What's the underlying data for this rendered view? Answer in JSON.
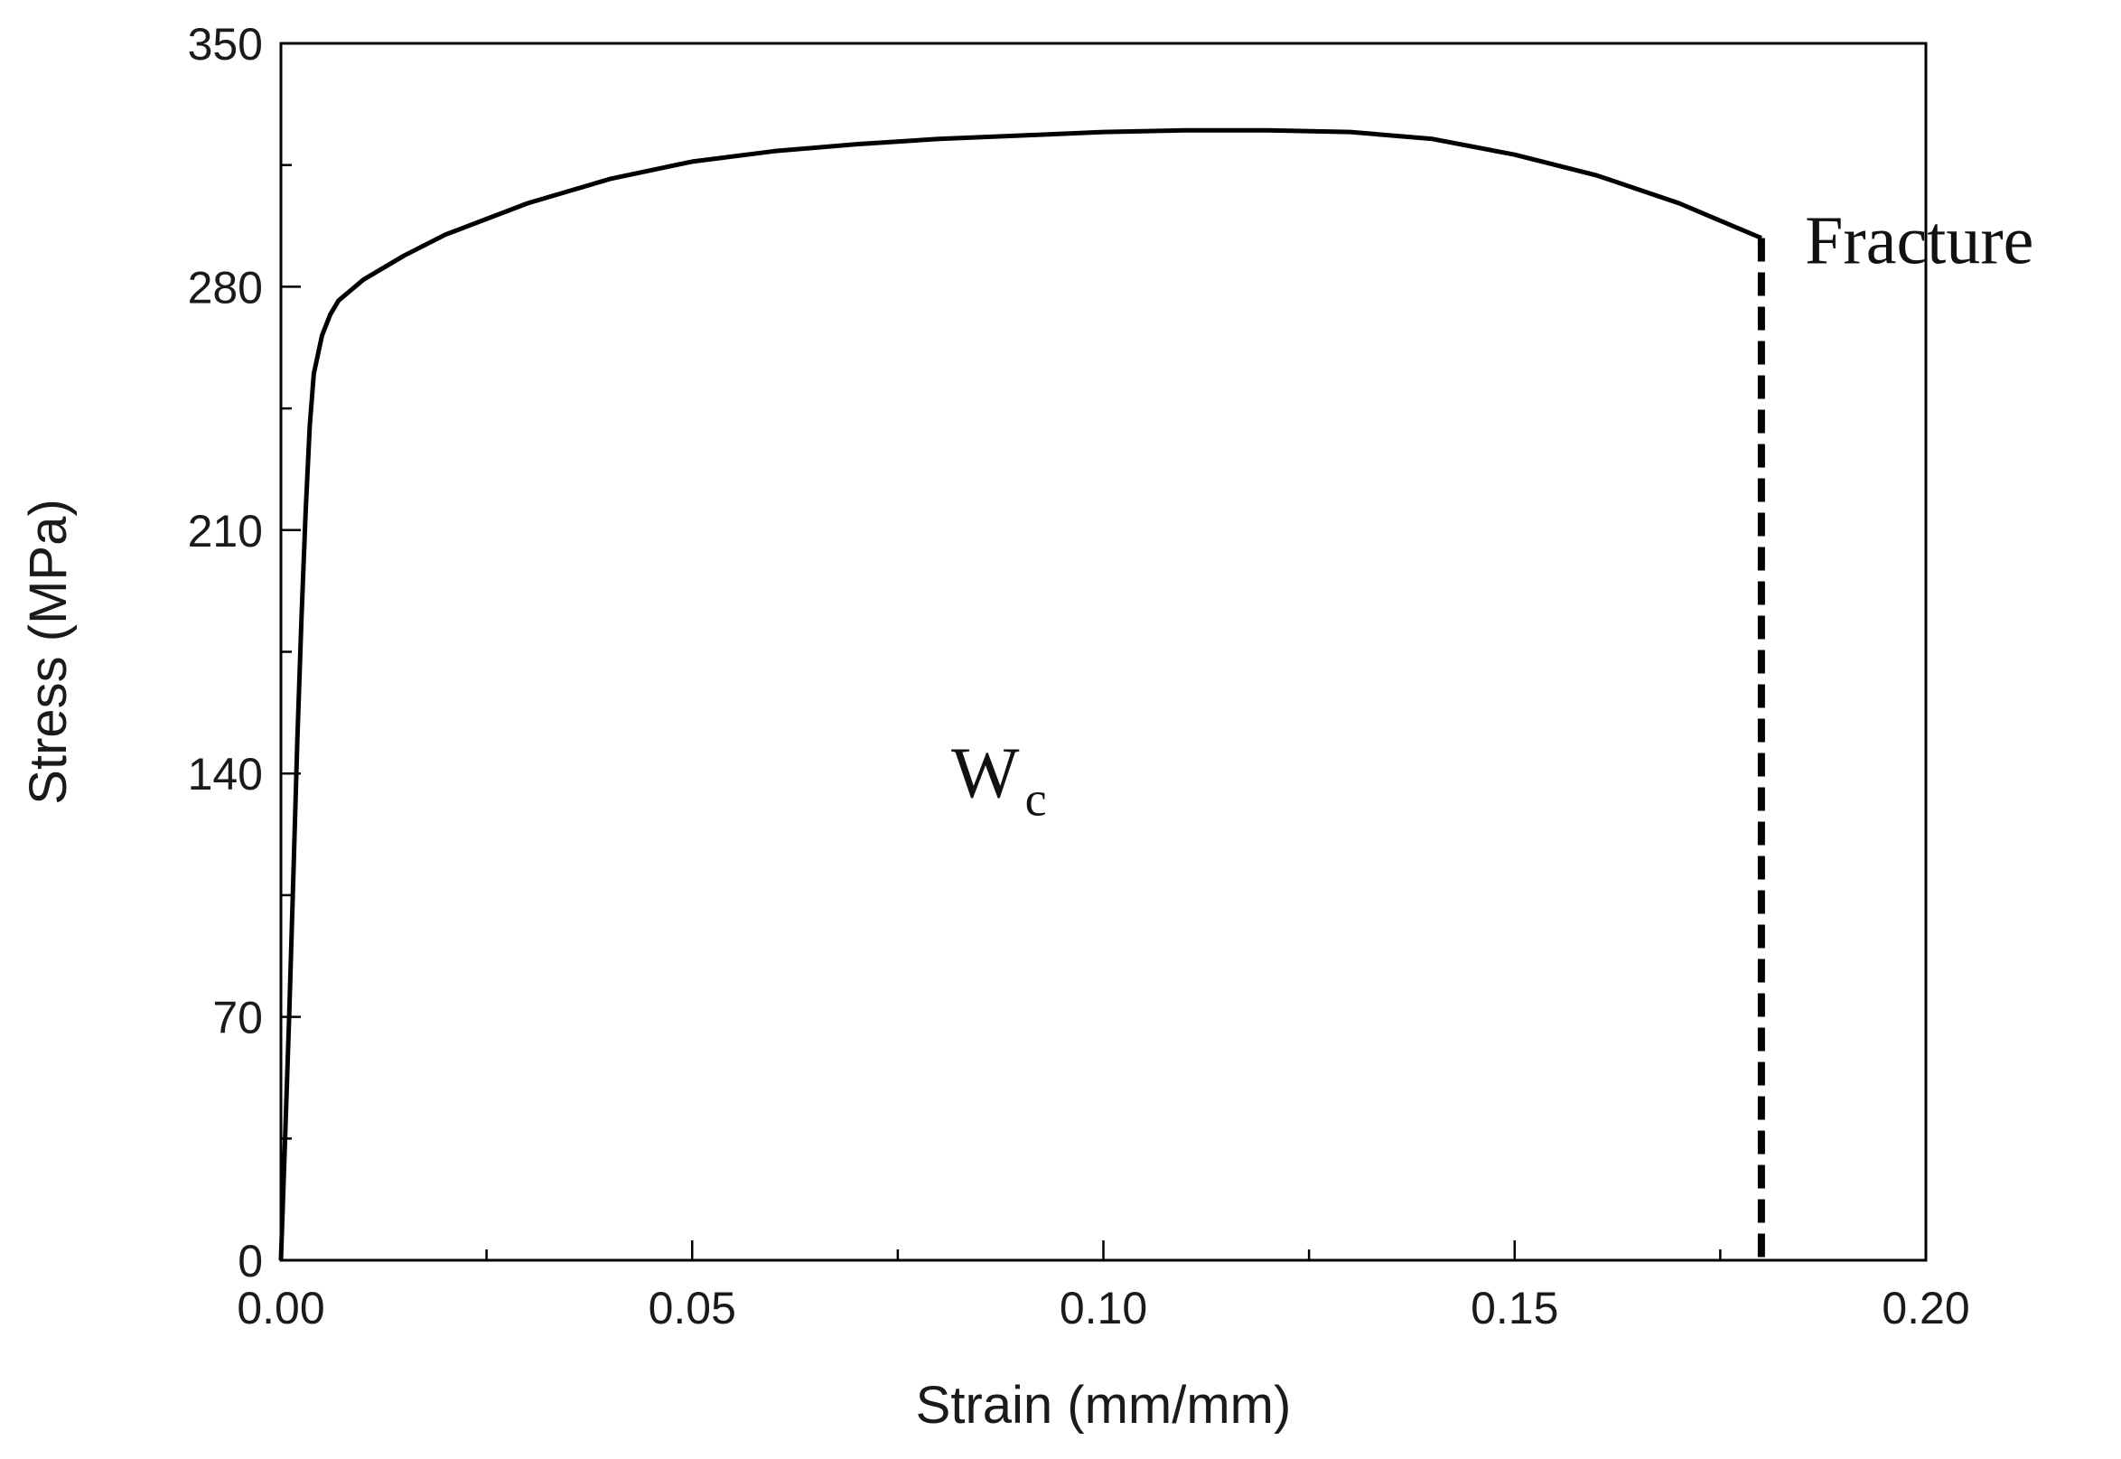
{
  "chart_data": {
    "type": "line",
    "title": "",
    "xlabel": "Strain (mm/mm)",
    "ylabel": "Stress (MPa)",
    "xlim": [
      0,
      0.2
    ],
    "ylim": [
      0,
      350
    ],
    "x_ticks": [
      0,
      0.05,
      0.1,
      0.15,
      0.2
    ],
    "x_tick_labels": [
      "0.00",
      "0.05",
      "0.10",
      "0.15",
      "0.20"
    ],
    "y_ticks": [
      0,
      70,
      140,
      210,
      280,
      350
    ],
    "y_tick_labels": [
      "0",
      "70",
      "140",
      "210",
      "280",
      "350"
    ],
    "grid": false,
    "legend": "none",
    "series": [
      {
        "style": "solid",
        "color": "#000000",
        "x": [
          0.0,
          0.0005,
          0.001,
          0.0015,
          0.002,
          0.0025,
          0.003,
          0.0035,
          0.004,
          0.005,
          0.006,
          0.007,
          0.008,
          0.01,
          0.015,
          0.02,
          0.03,
          0.04,
          0.05,
          0.06,
          0.07,
          0.08,
          0.09,
          0.1,
          0.11,
          0.12,
          0.13,
          0.14,
          0.15,
          0.16,
          0.17,
          0.175,
          0.18
        ],
        "y": [
          0,
          35,
          70,
          110,
          150,
          185,
          215,
          240,
          255,
          266,
          272,
          276,
          278,
          282,
          289,
          295,
          304,
          311,
          316,
          319,
          321,
          322.5,
          323.5,
          324.5,
          325,
          325,
          324.5,
          322.5,
          318,
          312,
          304,
          299,
          294
        ]
      },
      {
        "style": "dashed",
        "color": "#000000",
        "x": [
          0.18,
          0.18
        ],
        "y": [
          294,
          0
        ]
      }
    ],
    "annotations": [
      {
        "text": "Fracture",
        "x": 0.1853,
        "y": 293
      },
      {
        "text": "W",
        "subscript": "c",
        "x": 0.0815,
        "y": 143
      }
    ]
  }
}
